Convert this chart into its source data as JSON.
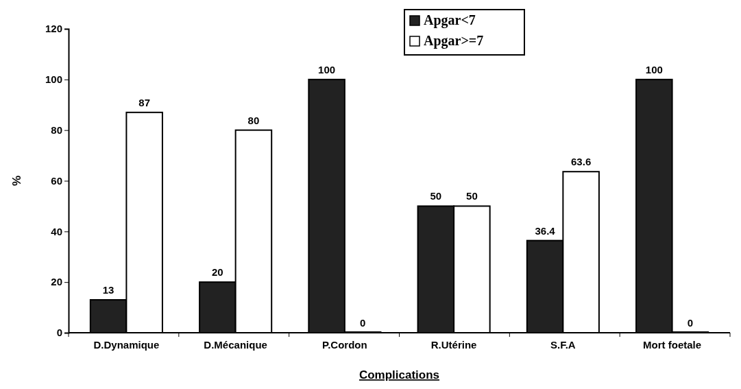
{
  "chart_data": {
    "type": "bar",
    "xlabel": "Complications",
    "ylabel": "%",
    "categories": [
      "D.Dynamique",
      "D.Mécanique",
      "P.Cordon",
      "R.Utérine",
      "S.F.A",
      "Mort foetale"
    ],
    "series": [
      {
        "name": "Apgar<7",
        "color": "#222222",
        "values": [
          13,
          20,
          100,
          50,
          36.4,
          100
        ]
      },
      {
        "name": "Apgar>=7",
        "color": "#ffffff",
        "values": [
          87,
          80,
          0,
          50,
          63.6,
          0
        ]
      }
    ],
    "ylim": [
      0,
      120
    ],
    "yticks": [
      0,
      20,
      40,
      60,
      80,
      100,
      120
    ],
    "data_labels": true,
    "grid": false,
    "legend": "top right"
  }
}
